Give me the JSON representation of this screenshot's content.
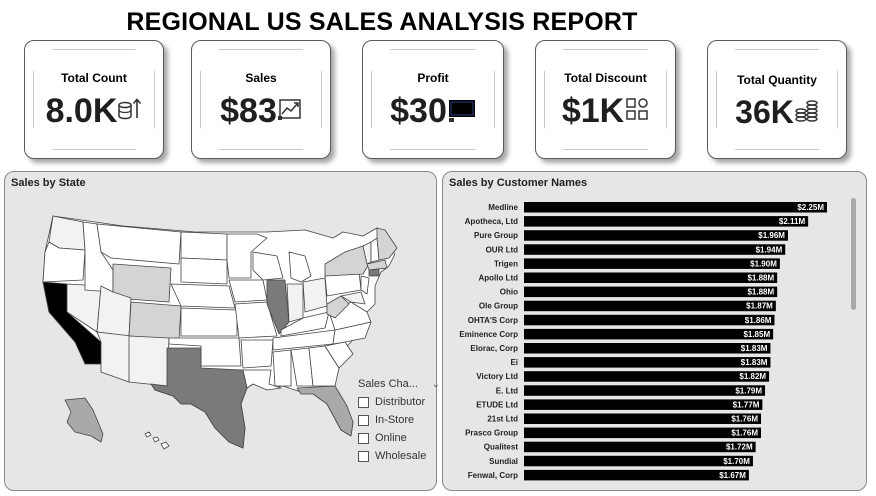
{
  "report": {
    "title": "REGIONAL US SALES ANALYSIS REPORT"
  },
  "kpis": [
    {
      "label": "Total Count",
      "value": "8.0K",
      "icon": "database-arrow-icon"
    },
    {
      "label": "Sales",
      "value": "$83",
      "icon": "sales-chart-icon"
    },
    {
      "label": "Profit",
      "value": "$30",
      "icon": "profit-icon"
    },
    {
      "label": "Total Discount",
      "value": "$1K",
      "icon": "discount-grid-icon"
    },
    {
      "label": "Total Quantity",
      "value": "36K",
      "icon": "coin-stack-icon"
    }
  ],
  "map_panel": {
    "title": "Sales by State",
    "legend": {
      "title": "Sales Cha...",
      "items": [
        "Distributor",
        "In-Store",
        "Online",
        "Wholesale"
      ]
    },
    "colors": {
      "highest": "#000000",
      "high": "#7a7a7a",
      "medium": "#a9a9a9",
      "low": "#d4d4d4",
      "lowest": "#f2f2f2"
    }
  },
  "bar_panel": {
    "title": "Sales by Customer Names"
  },
  "chart_data": {
    "type": "bar",
    "orientation": "horizontal",
    "title": "Sales by Customer Names",
    "categories": [
      "Medline",
      "Apotheca, Ltd",
      "Pure Group",
      "OUR Ltd",
      "Trigen",
      "Apollo Ltd",
      "Ohio",
      "Ole Group",
      "OHTA'S Corp",
      "Eminence Corp",
      "Elorac, Corp",
      "Ei",
      "Victory Ltd",
      "E. Ltd",
      "ETUDE Ltd",
      "21st Ltd",
      "Prasco Group",
      "Qualitest",
      "Sundial",
      "Fenwal, Corp"
    ],
    "values": [
      2.25,
      2.11,
      1.96,
      1.94,
      1.9,
      1.88,
      1.88,
      1.87,
      1.86,
      1.85,
      1.83,
      1.83,
      1.82,
      1.79,
      1.77,
      1.76,
      1.76,
      1.72,
      1.7,
      1.67
    ],
    "labels": [
      "$2.25M",
      "$2.11M",
      "$1.96M",
      "$1.94M",
      "$1.90M",
      "$1.88M",
      "$1.88M",
      "$1.87M",
      "$1.86M",
      "$1.85M",
      "$1.83M",
      "$1.83M",
      "$1.82M",
      "$1.79M",
      "$1.77M",
      "$1.76M",
      "$1.76M",
      "$1.72M",
      "$1.70M",
      "$1.67M"
    ],
    "unit": "M",
    "xlim": [
      0,
      2.25
    ],
    "bar_color": "#000000",
    "label_color": "#ffffff"
  }
}
